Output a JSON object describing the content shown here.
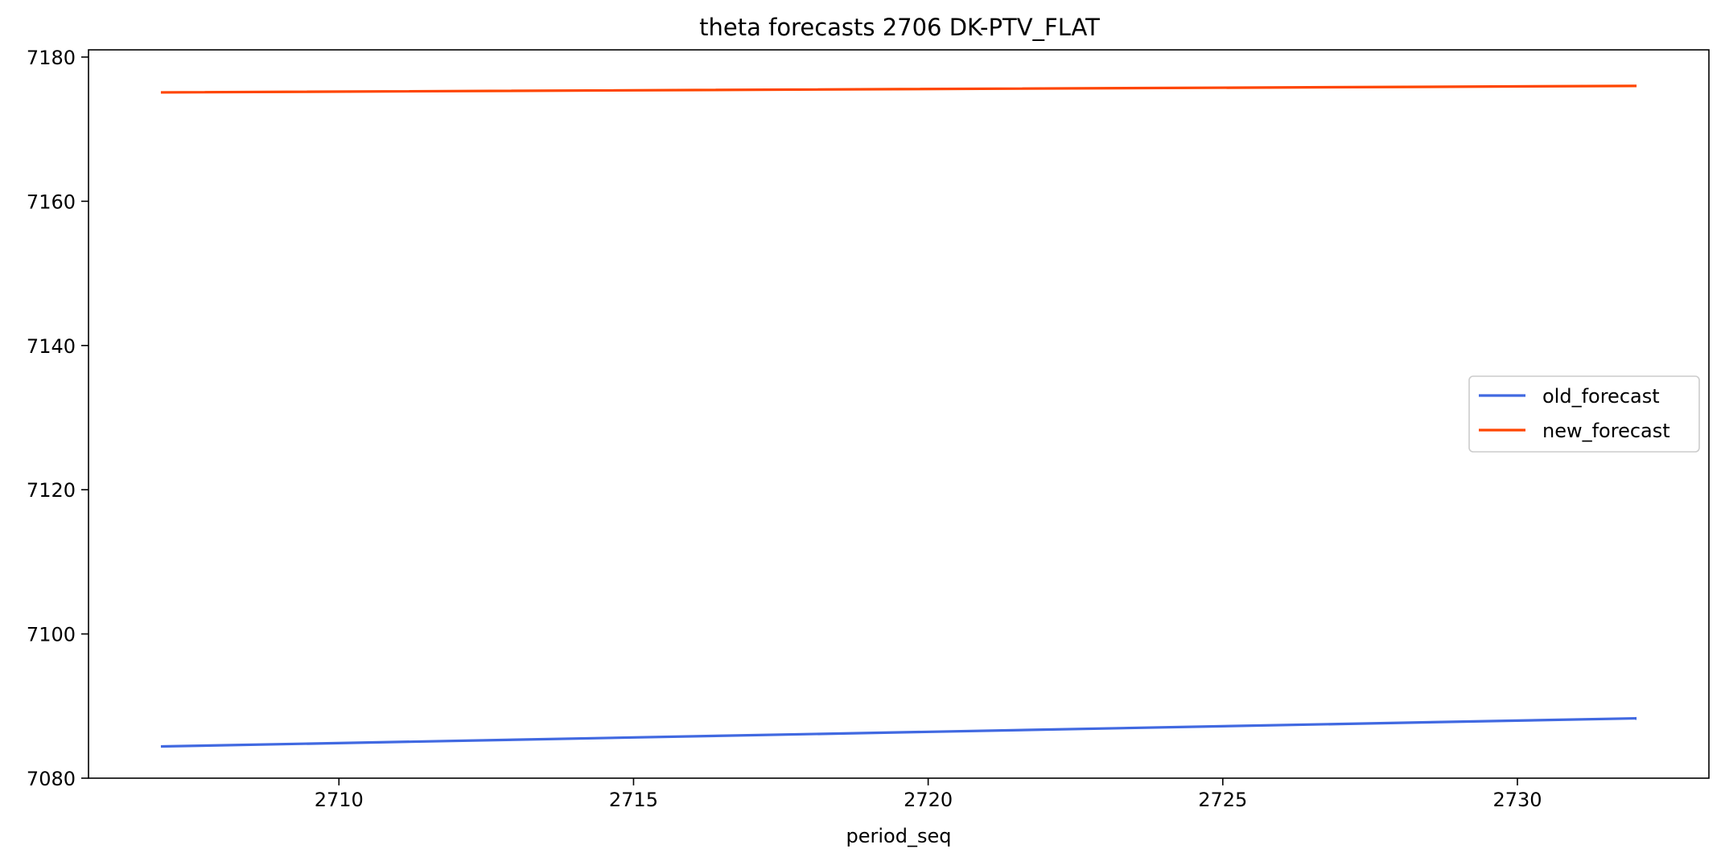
{
  "chart_data": {
    "type": "line",
    "title": "theta forecasts 2706 DK-PTV_FLAT",
    "xlabel": "period_seq",
    "ylabel": "",
    "xlim": [
      2705.75,
      2733.25
    ],
    "ylim": [
      7080,
      7181
    ],
    "xticks": [
      2710,
      2715,
      2720,
      2725,
      2730
    ],
    "yticks": [
      7080,
      7100,
      7120,
      7140,
      7160,
      7180
    ],
    "grid": false,
    "legend_position": "center-right",
    "series": [
      {
        "name": "old_forecast",
        "color": "#4169e1",
        "x": [
          2707,
          2732
        ],
        "y": [
          7084.4,
          7088.3
        ]
      },
      {
        "name": "new_forecast",
        "color": "#ff4500",
        "x": [
          2707,
          2732
        ],
        "y": [
          7175.1,
          7176.0
        ]
      }
    ]
  }
}
